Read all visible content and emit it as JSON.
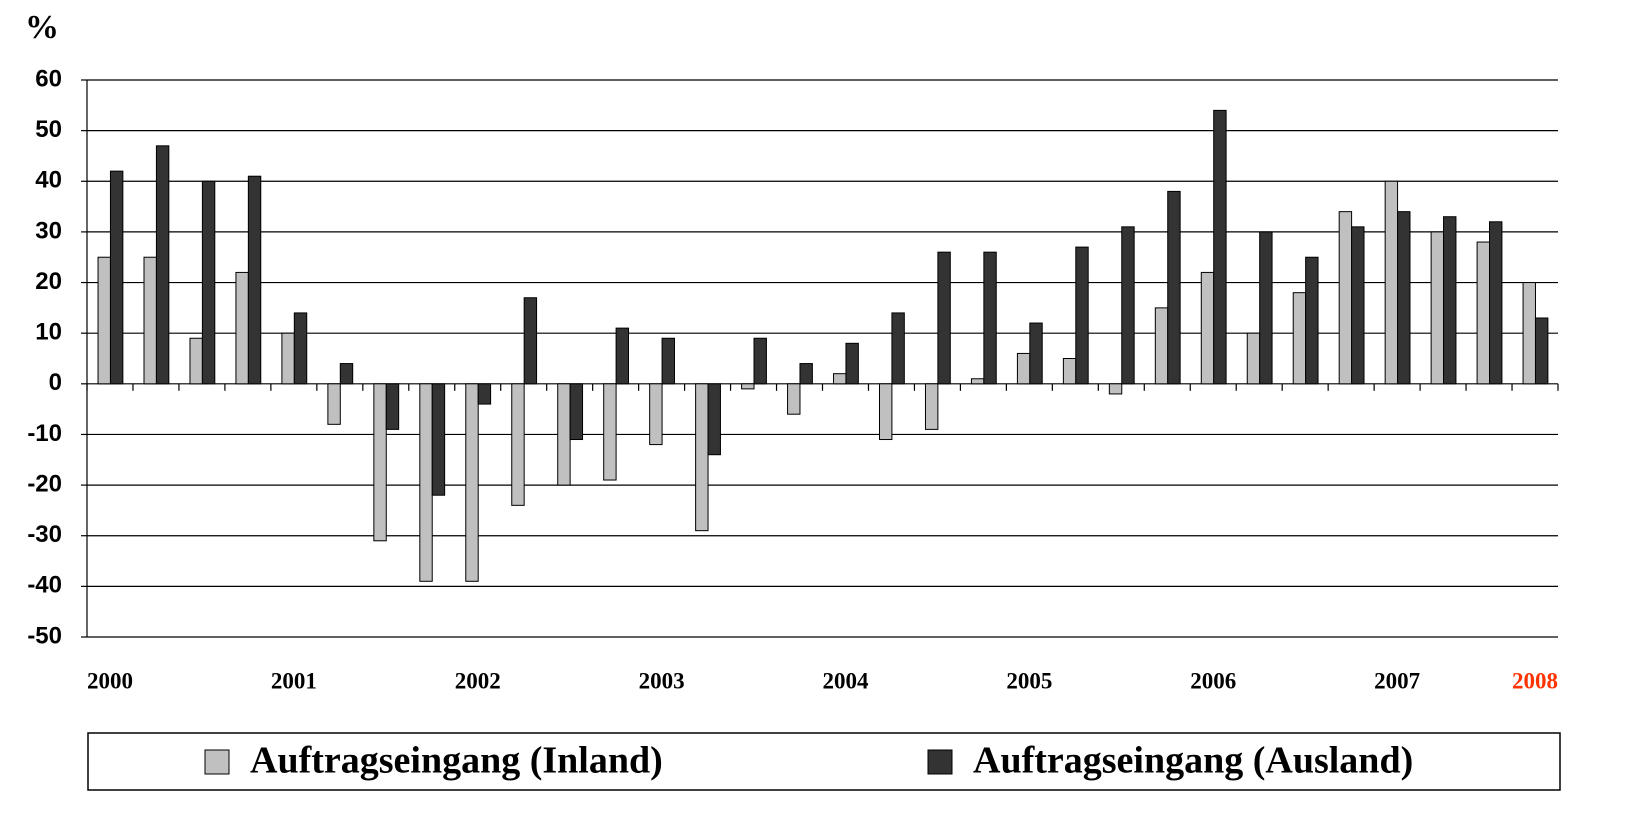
{
  "chart_data": {
    "type": "bar",
    "y_label": "%",
    "categories": [
      "2000",
      null,
      null,
      null,
      "2001",
      null,
      null,
      null,
      "2002",
      null,
      null,
      null,
      "2003",
      null,
      null,
      null,
      "2004",
      null,
      null,
      null,
      "2005",
      null,
      null,
      null,
      "2006",
      null,
      null,
      null,
      "2007",
      null,
      null,
      "2008"
    ],
    "series": [
      {
        "name": "Auftragseingang (Inland)",
        "color": "#c0c0c0",
        "values": [
          25,
          25,
          9,
          22,
          10,
          -8,
          -31,
          -39,
          -39,
          -24,
          -20,
          -19,
          -12,
          -29,
          -1,
          -6,
          2,
          -11,
          -9,
          1,
          6,
          5,
          -2,
          15,
          22,
          10,
          18,
          34,
          40,
          30,
          28,
          20
        ]
      },
      {
        "name": "Auftragseingang (Ausland)",
        "color": "#333333",
        "values": [
          42,
          47,
          40,
          41,
          14,
          4,
          -9,
          -22,
          -4,
          17,
          -11,
          11,
          9,
          -14,
          9,
          4,
          8,
          14,
          26,
          26,
          12,
          27,
          31,
          38,
          54,
          30,
          25,
          31,
          34,
          33,
          32,
          13
        ]
      }
    ],
    "ylim": [
      -50,
      60
    ],
    "yticks": [
      -50,
      -40,
      -30,
      -20,
      -10,
      0,
      10,
      20,
      30,
      40,
      50,
      60
    ],
    "grid": true,
    "legend": "bottom",
    "last_label_color": "#ff3300"
  }
}
